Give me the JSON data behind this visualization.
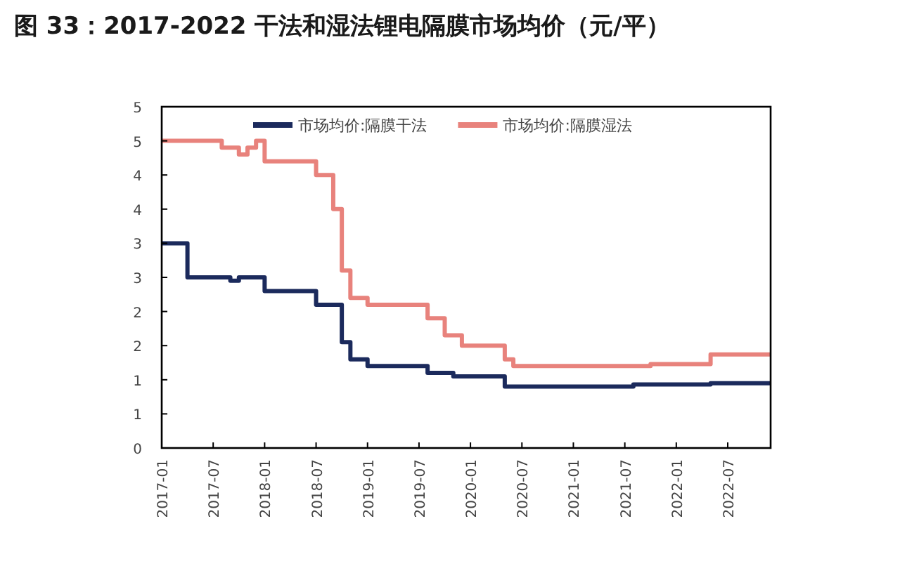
{
  "chart_data": {
    "type": "step",
    "title": "图 33：2017-2022 干法和湿法锂电隔膜市场均价（元/平）",
    "xlim": [
      "2017-01",
      "2022-12"
    ],
    "xticks": [
      "2017-01",
      "2017-07",
      "2018-01",
      "2018-07",
      "2019-01",
      "2019-07",
      "2020-01",
      "2020-07",
      "2021-01",
      "2021-07",
      "2022-01",
      "2022-07"
    ],
    "ylim": [
      0,
      5
    ],
    "yticks": [
      0,
      {
        "value": 0.5,
        "label": "1"
      },
      1,
      {
        "value": 1.5,
        "label": "2"
      },
      2,
      {
        "value": 2.5,
        "label": "3"
      },
      3,
      {
        "value": 3.5,
        "label": "4"
      },
      4,
      {
        "value": 4.5,
        "label": "5"
      },
      5
    ],
    "legend": "top",
    "grid": false,
    "series": [
      {
        "name": "市场均价:隔膜干法",
        "color": "#1b2a5c",
        "x": [
          "2017-01",
          "2017-04",
          "2017-09",
          "2017-10",
          "2018-01",
          "2018-07",
          "2018-10",
          "2018-11",
          "2019-01",
          "2019-08",
          "2019-11",
          "2020-05",
          "2021-08",
          "2022-05",
          "2022-12"
        ],
        "values": [
          3.0,
          2.5,
          2.45,
          2.5,
          2.3,
          2.1,
          1.55,
          1.3,
          1.2,
          1.1,
          1.05,
          0.9,
          0.93,
          0.95,
          0.95
        ]
      },
      {
        "name": "市场均价:隔膜湿法",
        "color": "#e8827c",
        "x": [
          "2017-01",
          "2017-08",
          "2017-10",
          "2017-11",
          "2017-12",
          "2018-01",
          "2018-07",
          "2018-09",
          "2018-10",
          "2018-11",
          "2019-01",
          "2019-08",
          "2019-10",
          "2019-12",
          "2020-05",
          "2020-06",
          "2021-10",
          "2022-05",
          "2022-12"
        ],
        "values": [
          4.5,
          4.4,
          4.3,
          4.4,
          4.5,
          4.2,
          4.0,
          3.5,
          2.6,
          2.2,
          2.1,
          1.9,
          1.65,
          1.5,
          1.3,
          1.2,
          1.23,
          1.37,
          1.37
        ]
      }
    ]
  }
}
